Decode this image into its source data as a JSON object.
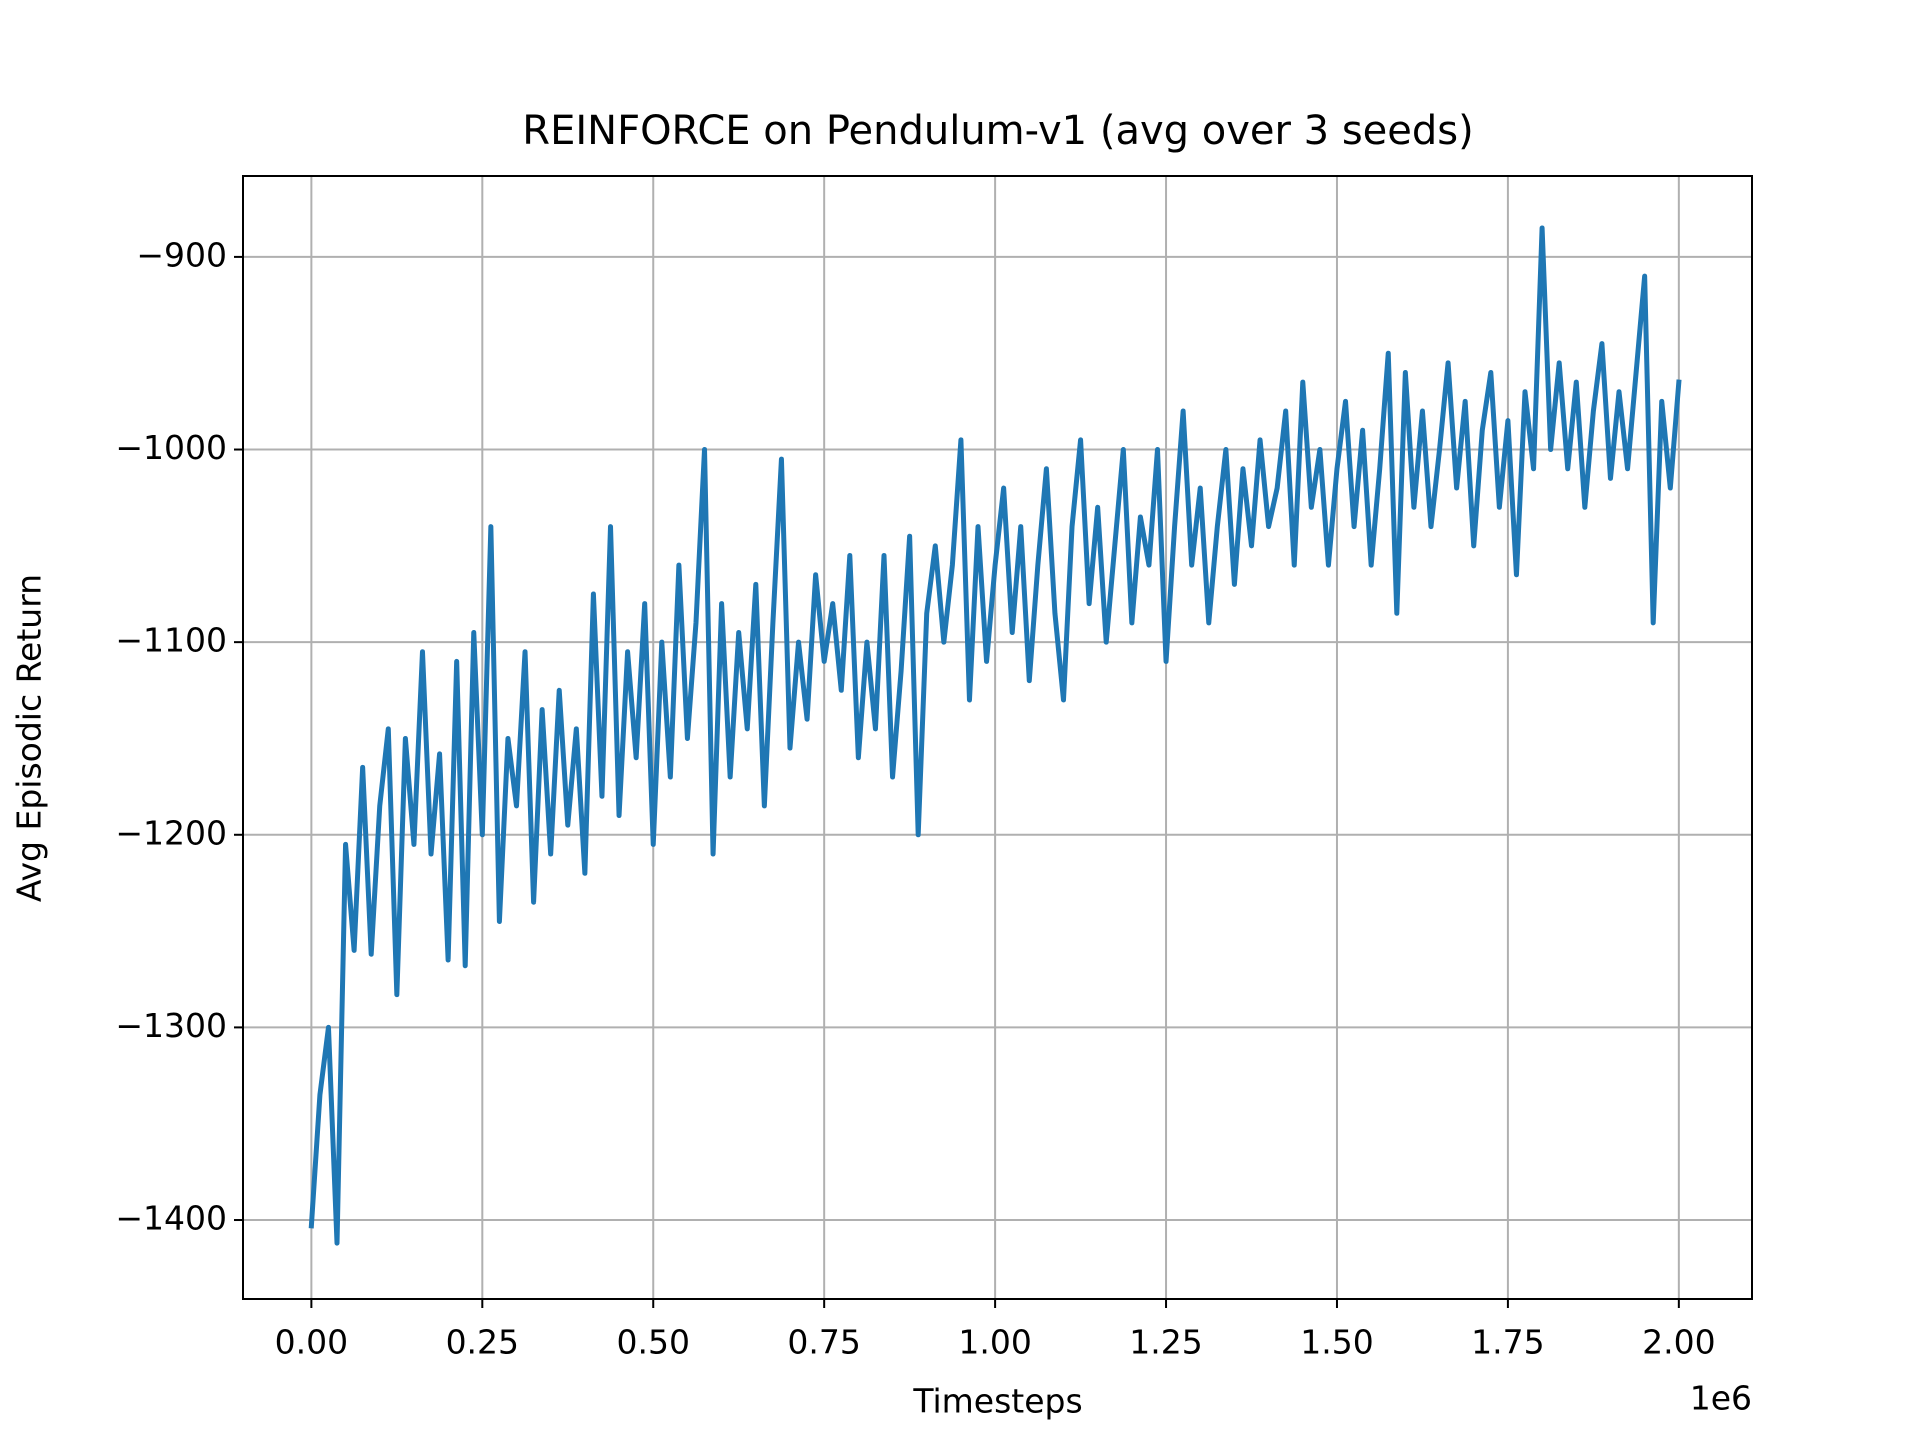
{
  "chart_data": {
    "type": "line",
    "title": "REINFORCE on Pendulum-v1 (avg over 3 seeds)",
    "x_label": "Timesteps",
    "y_label": "Avg Episodic Return",
    "x_offset_label": "1e6",
    "grid": true,
    "xlim": [
      -100000,
      2107000
    ],
    "ylim": [
      -1441,
      -858
    ],
    "xticks": [
      {
        "value": 0,
        "label": "0.00"
      },
      {
        "value": 250000,
        "label": "0.25"
      },
      {
        "value": 500000,
        "label": "0.50"
      },
      {
        "value": 750000,
        "label": "0.75"
      },
      {
        "value": 1000000,
        "label": "1.00"
      },
      {
        "value": 1250000,
        "label": "1.25"
      },
      {
        "value": 1500000,
        "label": "1.50"
      },
      {
        "value": 1750000,
        "label": "1.75"
      },
      {
        "value": 2000000,
        "label": "2.00"
      }
    ],
    "yticks": [
      {
        "value": -1400,
        "label": "−1400"
      },
      {
        "value": -1300,
        "label": "−1300"
      },
      {
        "value": -1200,
        "label": "−1200"
      },
      {
        "value": -1100,
        "label": "−1100"
      },
      {
        "value": -1000,
        "label": "−1000"
      },
      {
        "value": -900,
        "label": "−900"
      }
    ],
    "x": [
      0,
      12500,
      25000,
      37500,
      50000,
      62500,
      75000,
      87500,
      100000,
      112500,
      125000,
      137500,
      150000,
      162500,
      175000,
      187500,
      200000,
      212500,
      225000,
      237500,
      250000,
      262500,
      275000,
      287500,
      300000,
      312500,
      325000,
      337500,
      350000,
      362500,
      375000,
      387500,
      400000,
      412500,
      425000,
      437500,
      450000,
      462500,
      475000,
      487500,
      500000,
      512500,
      525000,
      537500,
      550000,
      562500,
      575000,
      587500,
      600000,
      612500,
      625000,
      637500,
      650000,
      662500,
      675000,
      687500,
      700000,
      712500,
      725000,
      737500,
      750000,
      762500,
      775000,
      787500,
      800000,
      812500,
      825000,
      837500,
      850000,
      862500,
      875000,
      887500,
      900000,
      912500,
      925000,
      937500,
      950000,
      962500,
      975000,
      987500,
      1000000,
      1012500,
      1025000,
      1037500,
      1050000,
      1062500,
      1075000,
      1087500,
      1100000,
      1112500,
      1125000,
      1137500,
      1150000,
      1162500,
      1175000,
      1187500,
      1200000,
      1212500,
      1225000,
      1237500,
      1250000,
      1262500,
      1275000,
      1287500,
      1300000,
      1312500,
      1325000,
      1337500,
      1350000,
      1362500,
      1375000,
      1387500,
      1400000,
      1412500,
      1425000,
      1437500,
      1450000,
      1462500,
      1475000,
      1487500,
      1500000,
      1512500,
      1525000,
      1537500,
      1550000,
      1562500,
      1575000,
      1587500,
      1600000,
      1612500,
      1625000,
      1637500,
      1650000,
      1662500,
      1675000,
      1687500,
      1700000,
      1712500,
      1725000,
      1737500,
      1750000,
      1762500,
      1775000,
      1787500,
      1800000,
      1812500,
      1825000,
      1837500,
      1850000,
      1862500,
      1875000,
      1887500,
      1900000,
      1912500,
      1925000,
      1937500,
      1950000,
      1962500,
      1975000,
      1987500,
      2000000
    ],
    "series": [
      {
        "color": "#1f77b4",
        "values": [
          -1403,
          -1335,
          -1300,
          -1412,
          -1205,
          -1260,
          -1165,
          -1262,
          -1185,
          -1145,
          -1283,
          -1150,
          -1205,
          -1105,
          -1210,
          -1158,
          -1265,
          -1110,
          -1268,
          -1095,
          -1200,
          -1040,
          -1245,
          -1150,
          -1185,
          -1105,
          -1235,
          -1135,
          -1210,
          -1125,
          -1195,
          -1145,
          -1220,
          -1075,
          -1180,
          -1040,
          -1190,
          -1105,
          -1160,
          -1080,
          -1205,
          -1100,
          -1170,
          -1060,
          -1150,
          -1090,
          -1000,
          -1210,
          -1080,
          -1170,
          -1095,
          -1145,
          -1070,
          -1185,
          -1090,
          -1005,
          -1155,
          -1100,
          -1140,
          -1065,
          -1110,
          -1080,
          -1125,
          -1055,
          -1160,
          -1100,
          -1145,
          -1055,
          -1170,
          -1115,
          -1045,
          -1200,
          -1085,
          -1050,
          -1100,
          -1060,
          -995,
          -1130,
          -1040,
          -1110,
          -1060,
          -1020,
          -1095,
          -1040,
          -1120,
          -1060,
          -1010,
          -1085,
          -1130,
          -1040,
          -995,
          -1080,
          -1030,
          -1100,
          -1050,
          -1000,
          -1090,
          -1035,
          -1060,
          -1000,
          -1110,
          -1040,
          -980,
          -1060,
          -1020,
          -1090,
          -1040,
          -1000,
          -1070,
          -1010,
          -1050,
          -995,
          -1040,
          -1020,
          -980,
          -1060,
          -965,
          -1030,
          -1000,
          -1060,
          -1010,
          -975,
          -1040,
          -990,
          -1060,
          -1010,
          -950,
          -1085,
          -960,
          -1030,
          -980,
          -1040,
          -1000,
          -955,
          -1020,
          -975,
          -1050,
          -990,
          -960,
          -1030,
          -985,
          -1065,
          -970,
          -1010,
          -885,
          -1000,
          -955,
          -1010,
          -965,
          -1030,
          -980,
          -945,
          -1015,
          -970,
          -1010,
          -960,
          -910,
          -1090,
          -975,
          -1020,
          -965
        ]
      }
    ]
  }
}
